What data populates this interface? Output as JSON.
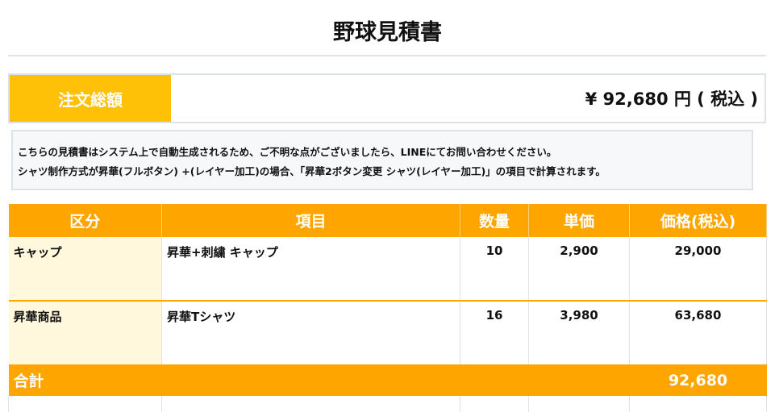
{
  "title": "野球見積書",
  "order": {
    "label": "注文総額",
    "amount": "¥ 92,680 円 ( 税込 )"
  },
  "notes": [
    "こちらの見積書はシステム上で自動生成されるため、ご不明な点がございましたら、LINEにてお問い合わせください。",
    "シャツ制作方式が昇華(フルボタン) +(レイヤー加工)の場合、「昇華2ボタン変更 シャツ(レイヤー加工)」の項目で計算されます。"
  ],
  "table": {
    "headers": [
      "区分",
      "項目",
      "数量",
      "単価",
      "価格(税込)"
    ],
    "rows": [
      {
        "category": "キャップ",
        "item": "昇華+刺繍 キャップ",
        "qty": "10",
        "unit": "2,900",
        "price": "29,000"
      },
      {
        "category": "昇華商品",
        "item": "昇華Tシャツ",
        "qty": "16",
        "unit": "3,980",
        "price": "63,680"
      }
    ],
    "total_label": "合計",
    "total": "92,680"
  },
  "colors": {
    "header": "#FFA500",
    "label": "#FFC107",
    "category_bg": "#FFF8DC"
  }
}
